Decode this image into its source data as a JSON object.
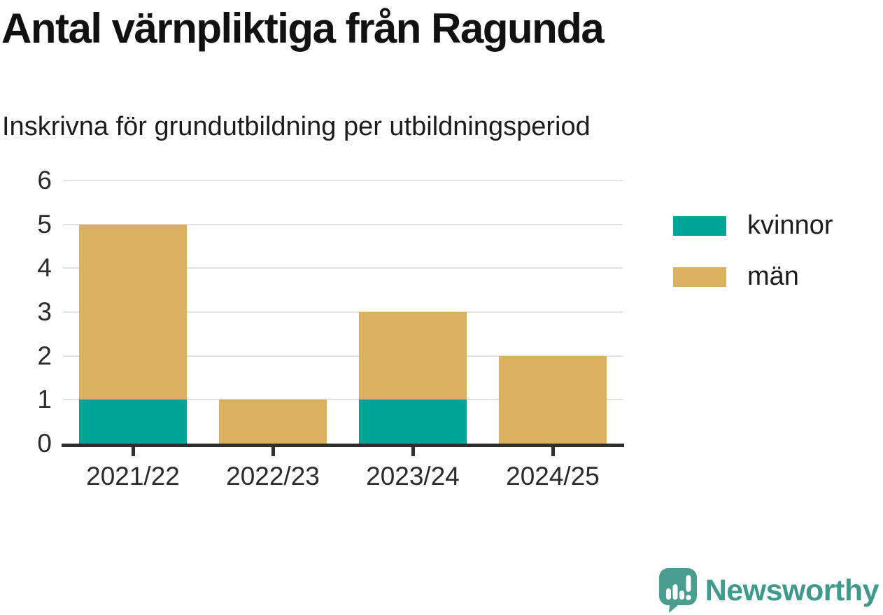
{
  "header": {
    "title": "Antal värnpliktiga från Ragunda",
    "subtitle": "Inskrivna för grundutbildning per utbildningsperiod"
  },
  "chart_data": {
    "type": "bar",
    "stacked": true,
    "categories": [
      "2021/22",
      "2022/23",
      "2023/24",
      "2024/25"
    ],
    "series": [
      {
        "name": "kvinnor",
        "color": "#00A496",
        "values": [
          1,
          0,
          1,
          0
        ]
      },
      {
        "name": "män",
        "color": "#D9B15F",
        "values": [
          4,
          1,
          2,
          2
        ]
      }
    ],
    "totals": [
      5,
      1,
      3,
      2
    ],
    "title": "Antal värnpliktiga från Ragunda",
    "subtitle": "Inskrivna för grundutbildning per utbildningsperiod",
    "xlabel": "",
    "ylabel": "",
    "ylim": [
      0,
      6
    ],
    "yticks": [
      0,
      1,
      2,
      3,
      4,
      5,
      6
    ],
    "grid": true,
    "legend_position": "right"
  },
  "colors": {
    "axis": "#2e2e2e",
    "grid": "#e2e2e2",
    "tick_text": "#2b2b2b"
  },
  "branding": {
    "name": "Newsworthy",
    "icon": "bar-chart-speech-bubble-icon",
    "text_color": "#3f9a8d",
    "icon_color": "#4a9e90"
  }
}
